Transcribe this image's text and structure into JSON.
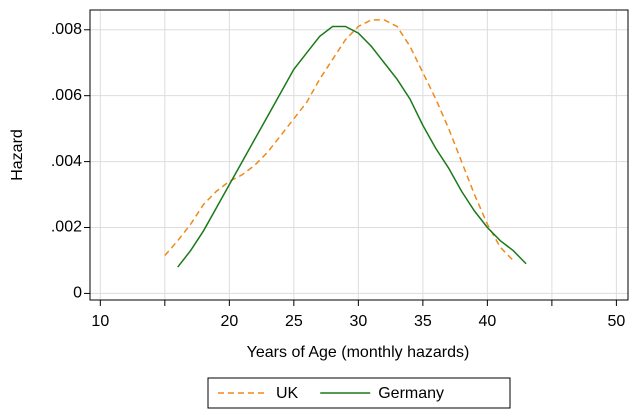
{
  "chart_data": {
    "type": "line",
    "xlabel": "Years of Age (monthly hazards)",
    "ylabel": "Hazard",
    "xlim": [
      9.2,
      50.9
    ],
    "ylim": [
      -0.0002,
      0.0086
    ],
    "xticks": [
      10,
      {
        "value": 15,
        "label": null
      },
      20,
      25,
      30,
      35,
      40,
      {
        "value": 45,
        "label": null
      },
      50
    ],
    "yticks": [
      0,
      {
        "value": 0.002,
        "label": ".002"
      },
      {
        "value": 0.004,
        "label": ".004"
      },
      {
        "value": 0.006,
        "label": ".006"
      },
      {
        "value": 0.008,
        "label": ".008"
      }
    ],
    "grid": true,
    "legend": "bottom",
    "series": [
      {
        "name": "UK",
        "color": "#f0891a",
        "dash": true,
        "x": [
          15,
          16,
          17,
          18,
          19,
          20,
          21,
          22,
          23,
          24,
          25,
          26,
          27,
          28,
          29,
          30,
          31,
          32,
          33,
          34,
          35,
          36,
          37,
          38,
          39,
          40,
          41,
          42
        ],
        "values": [
          0.00115,
          0.0016,
          0.0021,
          0.0027,
          0.0031,
          0.0034,
          0.0036,
          0.0039,
          0.0043,
          0.0048,
          0.0053,
          0.0058,
          0.0065,
          0.0071,
          0.0077,
          0.0081,
          0.0083,
          0.0083,
          0.0081,
          0.0075,
          0.0067,
          0.0059,
          0.005,
          0.004,
          0.003,
          0.0021,
          0.0014,
          0.001
        ]
      },
      {
        "name": "Germany",
        "color": "#1a7a1a",
        "dash": false,
        "x": [
          16,
          17,
          18,
          19,
          20,
          21,
          22,
          23,
          24,
          25,
          26,
          27,
          28,
          29,
          30,
          31,
          32,
          33,
          34,
          35,
          36,
          37,
          38,
          39,
          40,
          41,
          42,
          43
        ],
        "values": [
          0.0008,
          0.0013,
          0.0019,
          0.0026,
          0.0033,
          0.004,
          0.0047,
          0.0054,
          0.0061,
          0.0068,
          0.0073,
          0.0078,
          0.0081,
          0.0081,
          0.0079,
          0.0075,
          0.007,
          0.0065,
          0.0059,
          0.0051,
          0.0044,
          0.0038,
          0.0031,
          0.0025,
          0.002,
          0.0016,
          0.0013,
          0.0009
        ]
      }
    ]
  }
}
